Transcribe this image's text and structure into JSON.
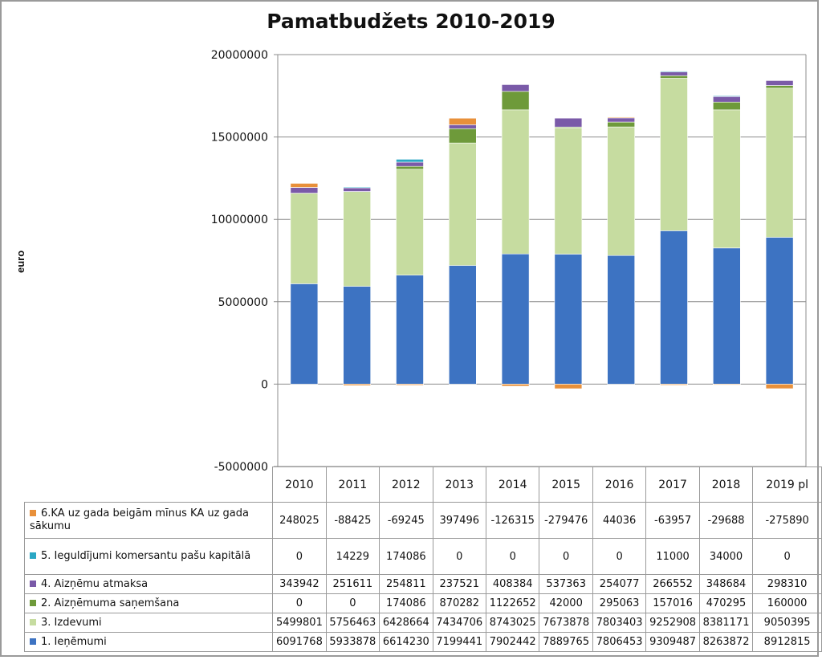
{
  "chart_data": {
    "type": "bar",
    "stacked": true,
    "title": "Pamatbudžets 2010-2019",
    "ylabel": "euro",
    "xlabel": "",
    "ylim": [
      -5000000,
      20000000
    ],
    "yticks": [
      "20000000",
      "15000000",
      "10000000",
      "5000000",
      "0",
      "-5000000"
    ],
    "yticks_values": [
      20000000,
      15000000,
      10000000,
      5000000,
      0,
      -5000000
    ],
    "grid": true,
    "legend_placement": "data table",
    "categories": [
      "2010",
      "2011",
      "2012",
      "2013",
      "2014",
      "2015",
      "2016",
      "2017",
      "2018",
      "2019 pl"
    ],
    "series": [
      {
        "name": "1. Ieņēmumi",
        "color": "#3d73c2",
        "values": [
          6091768,
          5933878,
          6614230,
          7199441,
          7902442,
          7889765,
          7806453,
          9309487,
          8263872,
          8912815
        ],
        "display": [
          "6091768",
          "5933878",
          "6614230",
          "7199441",
          "7902442",
          "7889765",
          "7806453",
          "9309487",
          "8263872",
          "8912815"
        ]
      },
      {
        "name": "3. Izdevumi",
        "color": "#c6dca0",
        "values": [
          5499801,
          5756463,
          6428664,
          7434706,
          8743025,
          7673878,
          7803403,
          9252908,
          8381171,
          9050395
        ],
        "display": [
          "5499801",
          "5756463",
          "6428664",
          "7434706",
          "8743025",
          "7673878",
          "7803403",
          "9252908",
          "8381171",
          "9050395"
        ]
      },
      {
        "name": "2. Aizņēmuma saņemšana",
        "color": "#6e9a3a",
        "values": [
          0,
          0,
          174086,
          870282,
          1122652,
          42000,
          295063,
          157016,
          470295,
          160000
        ],
        "display": [
          "0",
          "0",
          "174086",
          "870282",
          "1122652",
          "42000",
          "295063",
          "157016",
          "470295",
          "160000"
        ]
      },
      {
        "name": "4. Aizņēmu atmaksa",
        "color": "#7a5aa8",
        "values": [
          343942,
          251611,
          254811,
          237521,
          408384,
          537363,
          254077,
          266552,
          348684,
          298310
        ],
        "display": [
          "343942",
          "251611",
          "254811",
          "237521",
          "408384",
          "537363",
          "254077",
          "266552",
          "348684",
          "298310"
        ]
      },
      {
        "name": "5. Ieguldījumi komersantu pašu kapitālā",
        "color": "#2aa7c4",
        "values": [
          0,
          14229,
          174086,
          0,
          0,
          0,
          0,
          11000,
          34000,
          0
        ],
        "display": [
          "0",
          "14229",
          "174086",
          "0",
          "0",
          "0",
          "0",
          "11000",
          "34000",
          "0"
        ]
      },
      {
        "name": "6.KA uz gada beigām mīnus KA uz gada sākumu",
        "color": "#e8903a",
        "values": [
          248025,
          -88425,
          -69245,
          397496,
          -126315,
          -279476,
          44036,
          -63957,
          -29688,
          -275890
        ],
        "display": [
          "248025",
          "-88425",
          "-69245",
          "397496",
          "-126315",
          "-279476",
          "44036",
          "-63957",
          "-29688",
          "-275890"
        ]
      }
    ],
    "table_rows_order": [
      5,
      4,
      3,
      2,
      1,
      0
    ]
  }
}
